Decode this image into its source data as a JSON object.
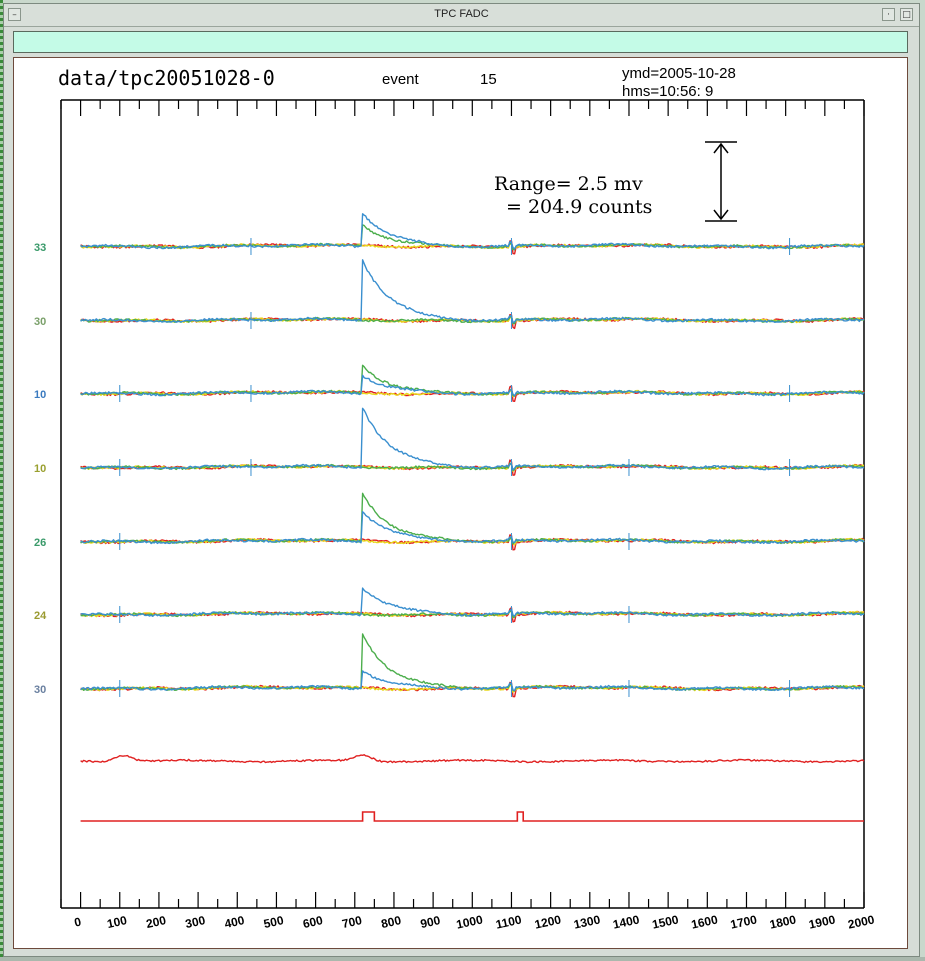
{
  "window": {
    "title": "TPC FADC"
  },
  "header": {
    "file": "data/tpc20051028-0",
    "event_label": "event",
    "event_number": "15",
    "ymd": "ymd=2005-10-28",
    "hms": "hms=10:56: 9"
  },
  "range": {
    "line1": "Range=    2.5 mv",
    "line2": "= 204.9 counts"
  },
  "channel_labels": [
    {
      "text": "33",
      "color": "#3a9a6a"
    },
    {
      "text": "30",
      "color": "#7aa06a"
    },
    {
      "text": "10",
      "color": "#3a7abf"
    },
    {
      "text": "10",
      "color": "#9aa030"
    },
    {
      "text": "26",
      "color": "#3a9a6a"
    },
    {
      "text": "24",
      "color": "#9a9a30"
    },
    {
      "text": "30",
      "color": "#6a80a0"
    }
  ],
  "colors": {
    "red": "#e02020",
    "yellow": "#e8d81a",
    "green": "#4cae4c",
    "blue": "#3a8fcf",
    "teal": "#2aa89a"
  },
  "chart_data": {
    "type": "line",
    "xlim": [
      -50,
      2000
    ],
    "x_ticks": [
      0,
      100,
      200,
      300,
      400,
      500,
      600,
      700,
      800,
      900,
      1000,
      1100,
      1200,
      1300,
      1400,
      1500,
      1600,
      1700,
      1800,
      1900,
      2000
    ],
    "tick_labels": [
      "0",
      "100",
      "200",
      "300",
      "400",
      "500",
      "600",
      "700",
      "800",
      "900",
      "1000",
      "1100",
      "1200",
      "1300",
      "1400",
      "1500",
      "1600",
      "1700",
      "1800",
      "1900",
      "2000"
    ],
    "range_mv": 2.5,
    "range_counts": 204.9,
    "channel_groups": [
      {
        "traces": [
          {
            "color": "red"
          },
          {
            "color": "yellow"
          },
          {
            "color": "green",
            "pulse": 0.35
          },
          {
            "color": "blue",
            "pulse": 0.55
          }
        ],
        "spikes": [
          435,
          1100,
          1810
        ]
      },
      {
        "traces": [
          {
            "color": "red"
          },
          {
            "color": "yellow"
          },
          {
            "color": "green"
          },
          {
            "color": "blue",
            "pulse": 1.0
          }
        ],
        "spikes": [
          435,
          1100
        ]
      },
      {
        "traces": [
          {
            "color": "red"
          },
          {
            "color": "yellow"
          },
          {
            "color": "green",
            "pulse": 0.45
          },
          {
            "color": "blue",
            "pulse": 0.3
          }
        ],
        "spikes": [
          100,
          435,
          1100,
          1810
        ]
      },
      {
        "traces": [
          {
            "color": "red"
          },
          {
            "color": "yellow"
          },
          {
            "color": "green"
          },
          {
            "color": "blue",
            "pulse": 1.0
          }
        ],
        "spikes": [
          100,
          435,
          1100,
          1400,
          1810
        ]
      },
      {
        "traces": [
          {
            "color": "red"
          },
          {
            "color": "yellow"
          },
          {
            "color": "green",
            "pulse": 0.8
          },
          {
            "color": "blue",
            "pulse": 0.5
          }
        ],
        "spikes": [
          100,
          1100,
          1400
        ]
      },
      {
        "traces": [
          {
            "color": "red"
          },
          {
            "color": "yellow"
          },
          {
            "color": "green"
          },
          {
            "color": "blue",
            "pulse": 0.45
          }
        ],
        "spikes": [
          100,
          1100,
          1400
        ]
      },
      {
        "traces": [
          {
            "color": "red"
          },
          {
            "color": "yellow"
          },
          {
            "color": "green",
            "pulse": 0.9
          },
          {
            "color": "blue",
            "pulse": 0.3
          }
        ],
        "spikes": [
          100,
          1100,
          1400,
          1810
        ]
      }
    ],
    "analog_trace": {
      "color": "red",
      "bumps": [
        110,
        720
      ]
    },
    "trigger_trace": {
      "color": "red",
      "pulses": [
        [
          720,
          750
        ],
        [
          1115,
          1130
        ]
      ]
    }
  }
}
